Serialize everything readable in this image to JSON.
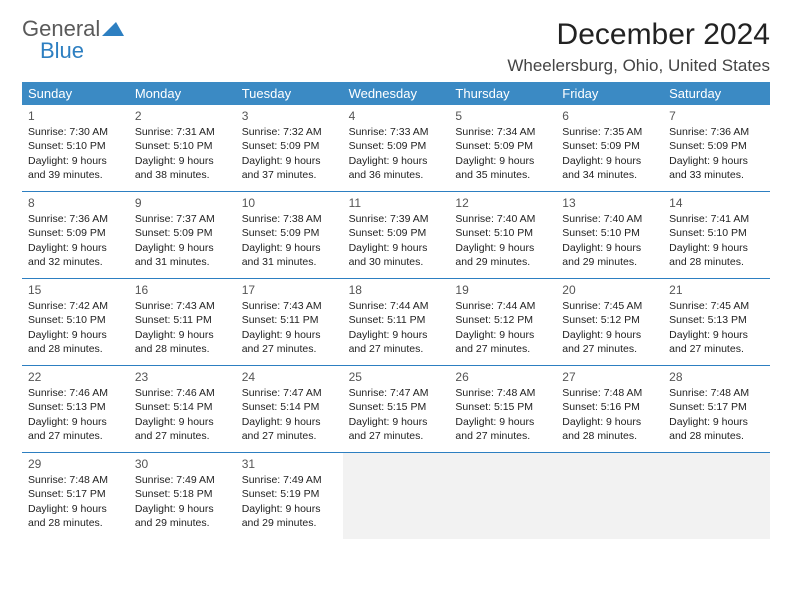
{
  "logo": {
    "word1": "General",
    "word2": "Blue"
  },
  "title": "December 2024",
  "location": "Wheelersburg, Ohio, United States",
  "colors": {
    "header_bg": "#3b8ac4",
    "header_text": "#ffffff",
    "border": "#2d7fc1",
    "logo_gray": "#5a5a5a",
    "logo_blue": "#2d7fc1",
    "empty_cell": "#f2f2f2",
    "text": "#222222",
    "background": "#ffffff"
  },
  "typography": {
    "title_fontsize": 30,
    "location_fontsize": 17,
    "dayheader_fontsize": 13,
    "daynum_fontsize": 12,
    "cell_fontsize": 10.5,
    "font_family": "Arial"
  },
  "layout": {
    "columns": 7,
    "rows": 5,
    "cell_min_height": 86
  },
  "day_headers": [
    "Sunday",
    "Monday",
    "Tuesday",
    "Wednesday",
    "Thursday",
    "Friday",
    "Saturday"
  ],
  "weeks": [
    [
      {
        "n": "1",
        "sunrise": "7:30 AM",
        "sunset": "5:10 PM",
        "daylight": "9 hours and 39 minutes."
      },
      {
        "n": "2",
        "sunrise": "7:31 AM",
        "sunset": "5:10 PM",
        "daylight": "9 hours and 38 minutes."
      },
      {
        "n": "3",
        "sunrise": "7:32 AM",
        "sunset": "5:09 PM",
        "daylight": "9 hours and 37 minutes."
      },
      {
        "n": "4",
        "sunrise": "7:33 AM",
        "sunset": "5:09 PM",
        "daylight": "9 hours and 36 minutes."
      },
      {
        "n": "5",
        "sunrise": "7:34 AM",
        "sunset": "5:09 PM",
        "daylight": "9 hours and 35 minutes."
      },
      {
        "n": "6",
        "sunrise": "7:35 AM",
        "sunset": "5:09 PM",
        "daylight": "9 hours and 34 minutes."
      },
      {
        "n": "7",
        "sunrise": "7:36 AM",
        "sunset": "5:09 PM",
        "daylight": "9 hours and 33 minutes."
      }
    ],
    [
      {
        "n": "8",
        "sunrise": "7:36 AM",
        "sunset": "5:09 PM",
        "daylight": "9 hours and 32 minutes."
      },
      {
        "n": "9",
        "sunrise": "7:37 AM",
        "sunset": "5:09 PM",
        "daylight": "9 hours and 31 minutes."
      },
      {
        "n": "10",
        "sunrise": "7:38 AM",
        "sunset": "5:09 PM",
        "daylight": "9 hours and 31 minutes."
      },
      {
        "n": "11",
        "sunrise": "7:39 AM",
        "sunset": "5:09 PM",
        "daylight": "9 hours and 30 minutes."
      },
      {
        "n": "12",
        "sunrise": "7:40 AM",
        "sunset": "5:10 PM",
        "daylight": "9 hours and 29 minutes."
      },
      {
        "n": "13",
        "sunrise": "7:40 AM",
        "sunset": "5:10 PM",
        "daylight": "9 hours and 29 minutes."
      },
      {
        "n": "14",
        "sunrise": "7:41 AM",
        "sunset": "5:10 PM",
        "daylight": "9 hours and 28 minutes."
      }
    ],
    [
      {
        "n": "15",
        "sunrise": "7:42 AM",
        "sunset": "5:10 PM",
        "daylight": "9 hours and 28 minutes."
      },
      {
        "n": "16",
        "sunrise": "7:43 AM",
        "sunset": "5:11 PM",
        "daylight": "9 hours and 28 minutes."
      },
      {
        "n": "17",
        "sunrise": "7:43 AM",
        "sunset": "5:11 PM",
        "daylight": "9 hours and 27 minutes."
      },
      {
        "n": "18",
        "sunrise": "7:44 AM",
        "sunset": "5:11 PM",
        "daylight": "9 hours and 27 minutes."
      },
      {
        "n": "19",
        "sunrise": "7:44 AM",
        "sunset": "5:12 PM",
        "daylight": "9 hours and 27 minutes."
      },
      {
        "n": "20",
        "sunrise": "7:45 AM",
        "sunset": "5:12 PM",
        "daylight": "9 hours and 27 minutes."
      },
      {
        "n": "21",
        "sunrise": "7:45 AM",
        "sunset": "5:13 PM",
        "daylight": "9 hours and 27 minutes."
      }
    ],
    [
      {
        "n": "22",
        "sunrise": "7:46 AM",
        "sunset": "5:13 PM",
        "daylight": "9 hours and 27 minutes."
      },
      {
        "n": "23",
        "sunrise": "7:46 AM",
        "sunset": "5:14 PM",
        "daylight": "9 hours and 27 minutes."
      },
      {
        "n": "24",
        "sunrise": "7:47 AM",
        "sunset": "5:14 PM",
        "daylight": "9 hours and 27 minutes."
      },
      {
        "n": "25",
        "sunrise": "7:47 AM",
        "sunset": "5:15 PM",
        "daylight": "9 hours and 27 minutes."
      },
      {
        "n": "26",
        "sunrise": "7:48 AM",
        "sunset": "5:15 PM",
        "daylight": "9 hours and 27 minutes."
      },
      {
        "n": "27",
        "sunrise": "7:48 AM",
        "sunset": "5:16 PM",
        "daylight": "9 hours and 28 minutes."
      },
      {
        "n": "28",
        "sunrise": "7:48 AM",
        "sunset": "5:17 PM",
        "daylight": "9 hours and 28 minutes."
      }
    ],
    [
      {
        "n": "29",
        "sunrise": "7:48 AM",
        "sunset": "5:17 PM",
        "daylight": "9 hours and 28 minutes."
      },
      {
        "n": "30",
        "sunrise": "7:49 AM",
        "sunset": "5:18 PM",
        "daylight": "9 hours and 29 minutes."
      },
      {
        "n": "31",
        "sunrise": "7:49 AM",
        "sunset": "5:19 PM",
        "daylight": "9 hours and 29 minutes."
      },
      null,
      null,
      null,
      null
    ]
  ],
  "labels": {
    "sunrise_prefix": "Sunrise: ",
    "sunset_prefix": "Sunset: ",
    "daylight_prefix": "Daylight: "
  }
}
